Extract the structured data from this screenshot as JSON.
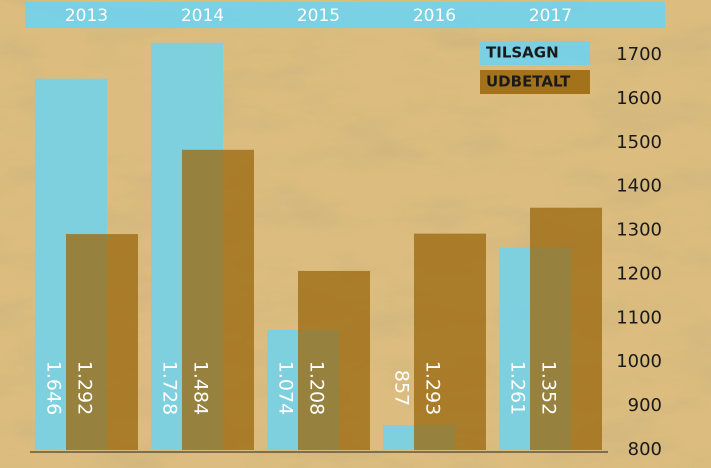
{
  "chart_data": {
    "type": "bar",
    "categories": [
      "2013",
      "2014",
      "2015",
      "2016",
      "2017"
    ],
    "series": [
      {
        "name": "TILSAGN",
        "color": "#6fd3f0",
        "values": [
          1646,
          1728,
          1074,
          857,
          1261
        ],
        "value_labels": [
          "1.646",
          "1.728",
          "1.074",
          "857",
          "1.261"
        ]
      },
      {
        "name": "UDBETALT",
        "color": "#9c6a12",
        "values": [
          1292,
          1484,
          1208,
          1293,
          1352
        ],
        "value_labels": [
          "1.292",
          "1.484",
          "1.208",
          "1.293",
          "1.352"
        ]
      }
    ],
    "ylim": [
      800,
      1700
    ],
    "yticks": [
      800,
      900,
      1000,
      1100,
      1200,
      1300,
      1400,
      1500,
      1600,
      1700
    ],
    "legend": "top-right"
  }
}
